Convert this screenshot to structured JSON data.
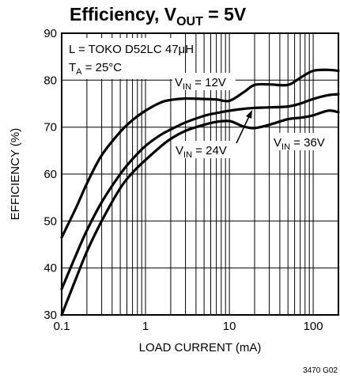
{
  "chart_data": {
    "type": "line",
    "title": {
      "main": "Efficiency, V",
      "sub": "OUT",
      "tail": " = 5V"
    },
    "xlabel": "LOAD CURRENT (mA)",
    "ylabel": "EFFICIENCY (%)",
    "x_scale": "log",
    "xlim": [
      0.1,
      200
    ],
    "ylim": [
      30,
      90
    ],
    "x_ticks": [
      {
        "value": 0.1,
        "label": "0.1"
      },
      {
        "value": 1,
        "label": "1"
      },
      {
        "value": 10,
        "label": "10"
      },
      {
        "value": 100,
        "label": "100"
      }
    ],
    "y_ticks": [
      30,
      40,
      50,
      60,
      70,
      80,
      90
    ],
    "grid": true,
    "conditions": [
      {
        "text": "L = TOKO D52LC 47μH"
      },
      {
        "main": "T",
        "sub": "A",
        "tail": " = 25°C"
      }
    ],
    "series": [
      {
        "name": "V_IN = 12V",
        "label": {
          "main": "V",
          "sub": "IN",
          "tail": " = 12V"
        },
        "x": [
          0.1,
          0.15,
          0.2,
          0.3,
          0.5,
          0.7,
          1,
          1.5,
          2,
          3,
          5,
          7,
          10,
          15,
          20,
          30,
          50,
          70,
          100,
          150,
          200
        ],
        "values": [
          46.5,
          53,
          58,
          64,
          69,
          71.5,
          73.5,
          75.2,
          75.8,
          76.1,
          76,
          75.9,
          75.6,
          77.5,
          79,
          79.1,
          79,
          80.5,
          82,
          82.2,
          82
        ]
      },
      {
        "name": "V_IN = 24V",
        "label": {
          "main": "V",
          "sub": "IN",
          "tail": " = 24V"
        },
        "x": [
          0.1,
          0.15,
          0.2,
          0.3,
          0.5,
          0.7,
          1,
          1.5,
          2,
          3,
          5,
          7,
          10,
          15,
          20,
          30,
          50,
          70,
          100,
          150,
          200
        ],
        "values": [
          35.5,
          43,
          48,
          54,
          60,
          63.2,
          66,
          68.3,
          69.5,
          71,
          72.4,
          73,
          73.5,
          73.9,
          74.1,
          74.2,
          74.4,
          75,
          76,
          76.8,
          77
        ]
      },
      {
        "name": "V_IN = 36V",
        "label": {
          "main": "V",
          "sub": "IN",
          "tail": " = 36V"
        },
        "x": [
          0.1,
          0.15,
          0.2,
          0.3,
          0.5,
          0.7,
          1,
          1.5,
          2,
          3,
          5,
          7,
          10,
          12,
          15,
          20,
          30,
          50,
          70,
          100,
          150,
          200
        ],
        "values": [
          30,
          38,
          43.5,
          50,
          57,
          60.3,
          63,
          65.8,
          67.5,
          69.2,
          70.5,
          71.1,
          71.3,
          70.8,
          70.1,
          69.8,
          70.5,
          71.7,
          72,
          72.5,
          73.5,
          73.2
        ]
      }
    ],
    "footnote": "3470 G02"
  }
}
